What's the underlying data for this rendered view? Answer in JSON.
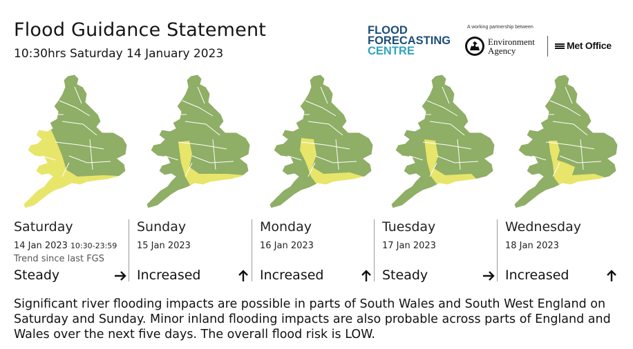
{
  "header": {
    "title": "Flood Guidance Statement",
    "subtitle": "10:30hrs Saturday 14 January 2023"
  },
  "logos": {
    "ffc_line1": "FLOOD",
    "ffc_line2": "FORECASTING",
    "ffc_line3": "CENTRE",
    "partnership": "A working partnership between",
    "ea_line1": "Environment",
    "ea_line2": "Agency",
    "met_office": "Met Office"
  },
  "colors": {
    "very_low_risk": "#8fae66",
    "low_risk": "#e8e56b",
    "boundary": "#ffffff"
  },
  "trend_label": "Trend since last FGS",
  "days": [
    {
      "name": "Saturday",
      "date": "14 Jan 2023",
      "hours": "10:30-23:59",
      "trend": "Steady",
      "arrow": "right-arrow-icon"
    },
    {
      "name": "Sunday",
      "date": "15 Jan 2023",
      "hours": "",
      "trend": "Increased",
      "arrow": "up-arrow-icon"
    },
    {
      "name": "Monday",
      "date": "16 Jan 2023",
      "hours": "",
      "trend": "Increased",
      "arrow": "up-arrow-icon"
    },
    {
      "name": "Tuesday",
      "date": "17 Jan 2023",
      "hours": "",
      "trend": "Steady",
      "arrow": "right-arrow-icon"
    },
    {
      "name": "Wednesday",
      "date": "18 Jan 2023",
      "hours": "",
      "trend": "Increased",
      "arrow": "up-arrow-icon"
    }
  ],
  "statement": "Significant river flooding impacts are possible in parts of South Wales and South West England on Saturday and Sunday. Minor inland flooding impacts are also probable across parts of England and Wales over the next five days. The overall flood risk is LOW."
}
